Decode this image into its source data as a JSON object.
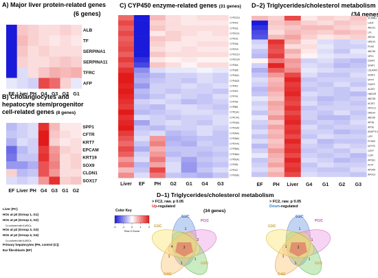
{
  "panels": {
    "A": {
      "title": "A)  Major liver protein-related genes",
      "count": "(6 genes)"
    },
    "B": {
      "title_line1": "B)  Cholangiocytes and",
      "title_line2": "hepatocyte stem/progenitor",
      "title_line3": "cell-related genes",
      "count": "(8 genes)"
    },
    "C": {
      "title": "C)  CYP450 enzyme-related genes",
      "count": "(31 genes)"
    },
    "D2": {
      "title": "D–2)  Triglycerides/cholesterol metabolism",
      "count": "(34 genes)"
    },
    "D1": {
      "title": "D–1)  Triglycerides/cholesterol metabolism"
    }
  },
  "legend": {
    "items": [
      {
        "text": "Liver (PC)",
        "sub": false
      },
      {
        "text": "HOs at p0 (Group 1, G1)",
        "sub": false
      },
      {
        "text": "HOs at p0 (Group 2, G2)",
        "sub": false
      },
      {
        "text": "Co-cultured with ILMSCs",
        "sub": true
      },
      {
        "text": "HOs at p2 (Group 3, G3)",
        "sub": false
      },
      {
        "text": "HOs at p2 (Group 4, G4)",
        "sub": false
      },
      {
        "text": "Co-cultured with ILMSCs",
        "sub": true
      },
      {
        "text": "Primary hepatocytes (PH, control (C))",
        "sub": false
      },
      {
        "text": "Ear fibroblasts  (EF)",
        "sub": false
      }
    ]
  },
  "color_key": {
    "title": "Color Key",
    "ticks": [
      "-2",
      "-1",
      "0",
      "1",
      "2"
    ],
    "xlabel": "Row Z-Score",
    "colors": {
      "low": "#1a1adb",
      "mid": "#ffffff",
      "high": "#e31a1a"
    }
  },
  "venn": {
    "left": {
      "line1": "> FC2, raw. p 0.05",
      "line2a": "Up",
      "line2b": "-regulated",
      "up_color": "#d7191c",
      "sets": {
        "g1": "G1/C",
        "pc": "PC/C",
        "g2": "G2/C",
        "g3": "G3/C",
        "g4": "G4/C"
      },
      "regions": [
        "1",
        "2",
        "3",
        "4",
        "1",
        "1",
        "1"
      ]
    },
    "right": {
      "line1": "> FC2, raw. p 0.05",
      "line2a": "Down",
      "line2b": "-regulated",
      "down_color": "#2b83ba",
      "sets": {
        "g1": "G1/C",
        "pc": "PC/C",
        "g2": "G2/C",
        "g3": "G3/C",
        "g4": "G4/C"
      },
      "regions": [
        "1",
        "1",
        "3",
        "1",
        "1",
        "1",
        "1"
      ]
    },
    "count": "(34 genes)"
  },
  "chart_data": [
    {
      "panel": "A",
      "type": "heatmap",
      "columns": [
        "EF",
        "Liver",
        "PH",
        "G4",
        "G3",
        "G2",
        "G1"
      ],
      "rows": [
        "ALB",
        "TF",
        "SERPINA1",
        "SERPINA11",
        "TFRC",
        "AFP"
      ],
      "values": [
        [
          -2.0,
          0.5,
          0.4,
          0.3,
          0.3,
          0.4,
          0.3
        ],
        [
          -2.0,
          0.6,
          0.4,
          0.3,
          0.2,
          0.3,
          0.2
        ],
        [
          -2.0,
          0.5,
          0.3,
          0.4,
          0.3,
          0.3,
          0.3
        ],
        [
          -2.0,
          0.4,
          0.3,
          0.3,
          0.4,
          0.5,
          0.4
        ],
        [
          -2.0,
          -0.3,
          0.3,
          0.5,
          0.7,
          0.6,
          0.7
        ],
        [
          -0.2,
          -0.3,
          -0.4,
          1.6,
          1.3,
          0.4,
          -0.2
        ]
      ]
    },
    {
      "panel": "B",
      "type": "heatmap",
      "columns": [
        "EF",
        "Liver",
        "PH",
        "G4",
        "G3",
        "G1",
        "G2"
      ],
      "rows": [
        "SPP1",
        "CFTR",
        "KRT7",
        "EPCAM",
        "KRT19",
        "SOX9",
        "CLDN1",
        "SOX17"
      ],
      "values": [
        [
          -0.6,
          -0.4,
          -0.3,
          1.8,
          0.6,
          0.2,
          0.2
        ],
        [
          -0.5,
          -0.4,
          -0.3,
          2.0,
          0.5,
          0.3,
          0.2
        ],
        [
          -0.7,
          -0.3,
          -0.4,
          2.0,
          0.4,
          0.2,
          0.3
        ],
        [
          -1.3,
          -0.6,
          -0.4,
          1.7,
          0.9,
          0.4,
          0.3
        ],
        [
          -1.2,
          -0.5,
          -0.5,
          1.8,
          1.0,
          0.3,
          0.4
        ],
        [
          -0.9,
          -0.9,
          -0.7,
          1.5,
          1.1,
          0.3,
          0.4
        ],
        [
          0.4,
          -0.6,
          -0.5,
          1.5,
          0.9,
          0.3,
          0.3
        ],
        [
          -0.3,
          -0.4,
          -0.3,
          0.9,
          1.8,
          0.4,
          0.5
        ]
      ]
    },
    {
      "panel": "C",
      "type": "heatmap",
      "columns": [
        "Liver",
        "EF",
        "PH",
        "G2",
        "G1",
        "G4",
        "G3"
      ],
      "rows": [
        "CYP2C18",
        "CYP4V2",
        "CYP2U1",
        "CYP2C21",
        "CYP1A1",
        "CYP2A6",
        "CYP2C9",
        "CYP2C19",
        "CYP2C29",
        "CYP3A4",
        "CYP3A5",
        "CYP4A11",
        "CYP4A22",
        "CYP4F2",
        "CYP4F3",
        "CYP7A1",
        "CYP7B1",
        "CYP8B1",
        "CYP11A1",
        "CYP17A1",
        "CYP19A1",
        "CYP21A2",
        "CYP24A1",
        "CYP26A1",
        "CYP27A1",
        "CYP39A1",
        "CYP46A1",
        "CYP51A1",
        "CYP2R1",
        "CYP2J2",
        "CYP20A1"
      ],
      "values": [
        [
          1.3,
          -2.0,
          0.6,
          0.3,
          0.2,
          0.3,
          0.3
        ],
        [
          1.6,
          -2.0,
          0.4,
          0.3,
          0.2,
          0.2,
          0.2
        ],
        [
          1.4,
          -2.0,
          0.5,
          0.3,
          0.3,
          0.3,
          0.3
        ],
        [
          1.6,
          -2.0,
          0.2,
          0.4,
          0.3,
          0.2,
          0.3
        ],
        [
          1.4,
          -2.0,
          0.5,
          0.4,
          0.2,
          0.2,
          0.2
        ],
        [
          1.5,
          -2.0,
          0.4,
          0.2,
          0.2,
          0.3,
          0.3
        ],
        [
          1.6,
          -2.0,
          0.3,
          0.2,
          0.3,
          0.2,
          0.2
        ],
        [
          1.4,
          -2.0,
          0.5,
          0.3,
          0.3,
          0.3,
          0.3
        ],
        [
          1.7,
          -1.8,
          0.2,
          0.1,
          0.2,
          0.1,
          0.1
        ],
        [
          1.5,
          -1.6,
          0.5,
          0.3,
          0.1,
          0.3,
          0.3
        ],
        [
          1.8,
          -1.0,
          -0.3,
          -0.2,
          -0.2,
          -0.1,
          -0.2
        ],
        [
          2.0,
          -0.8,
          -0.6,
          -0.4,
          -0.4,
          -0.3,
          -0.4
        ],
        [
          2.0,
          -0.7,
          -0.5,
          -0.4,
          -0.5,
          -0.3,
          -0.4
        ],
        [
          1.9,
          -0.9,
          -0.4,
          -0.4,
          -0.3,
          -0.4,
          -0.3
        ],
        [
          2.0,
          -0.6,
          -0.4,
          -0.5,
          -0.4,
          -0.4,
          -0.5
        ],
        [
          1.9,
          -0.7,
          -0.5,
          -0.3,
          -0.4,
          -0.5,
          -0.3
        ],
        [
          1.8,
          -0.4,
          -0.3,
          -0.4,
          -0.6,
          -0.5,
          -0.4
        ],
        [
          1.7,
          -0.5,
          -0.6,
          -0.3,
          -0.3,
          -0.4,
          -0.5
        ],
        [
          2.0,
          -0.6,
          -0.5,
          -0.4,
          -0.3,
          -0.3,
          -0.4
        ],
        [
          1.8,
          -0.3,
          -0.4,
          -0.5,
          -0.4,
          -0.4,
          -0.3
        ],
        [
          1.9,
          -0.8,
          -0.4,
          -0.3,
          -0.4,
          -0.5,
          -0.3
        ],
        [
          2.0,
          -0.5,
          -0.6,
          -0.4,
          -0.4,
          -0.3,
          -0.4
        ],
        [
          1.7,
          -0.4,
          -0.3,
          -0.6,
          -0.5,
          -0.3,
          -0.5
        ],
        [
          1.5,
          -0.3,
          0.9,
          -0.7,
          -0.6,
          -0.5,
          -0.5
        ],
        [
          1.3,
          -0.5,
          1.1,
          -0.6,
          -0.7,
          -0.4,
          -0.5
        ],
        [
          1.6,
          -0.7,
          0.7,
          -0.5,
          -0.5,
          -0.5,
          -0.4
        ],
        [
          1.4,
          -0.4,
          0.9,
          -0.6,
          -0.5,
          -0.6,
          -0.5
        ],
        [
          0.9,
          -0.3,
          1.2,
          -0.4,
          -0.8,
          -0.5,
          -0.4
        ],
        [
          1.2,
          -0.6,
          0.8,
          -0.3,
          -0.9,
          -0.6,
          -0.5
        ],
        [
          0.6,
          -0.5,
          1.6,
          -0.3,
          -0.9,
          -0.5,
          -0.3
        ],
        [
          1.0,
          -0.3,
          1.2,
          -0.5,
          -0.6,
          -0.7,
          -0.5
        ]
      ]
    },
    {
      "panel": "D2",
      "type": "heatmap",
      "columns": [
        "EF",
        "PH",
        "Liver",
        "G4",
        "G1",
        "G2",
        "G3"
      ],
      "rows": [
        "SCARB1",
        "LDLR",
        "ABCG1",
        "LPL",
        "ABCA1",
        "NR1H3",
        "PLIN2",
        "ABCG5",
        "NPC1",
        "DGAT1",
        "SOAT1",
        "LDLRAP1",
        "SOAT2",
        "MTTP",
        "DGAT2",
        "ACAT2",
        "HMGCR",
        "ABCG8",
        "ACAT1",
        "NPC1L1",
        "NR1H4",
        "ABCA5",
        "APOB",
        "APOE",
        "ANGPTL3",
        "LIPC",
        "PCSK9",
        "MTTP2",
        "CETP",
        "LCAT",
        "APOA1",
        "PLTP",
        "APOA5",
        "APOC3"
      ],
      "values": [
        [
          0.6,
          0.4,
          1.6,
          0.2,
          0.4,
          0.3,
          0.5
        ],
        [
          -2.0,
          0.5,
          0.7,
          0.4,
          0.3,
          0.5,
          0.4
        ],
        [
          -1.8,
          0.4,
          0.5,
          0.6,
          0.6,
          0.4,
          0.3
        ],
        [
          -1.6,
          0.3,
          0.6,
          0.5,
          0.4,
          0.6,
          0.5
        ],
        [
          -1.5,
          0.6,
          0.8,
          0.4,
          0.2,
          0.3,
          0.4
        ],
        [
          -0.4,
          1.8,
          0.6,
          0.2,
          -0.3,
          -0.4,
          -0.3
        ],
        [
          -0.3,
          1.6,
          0.3,
          0.3,
          -0.2,
          -0.4,
          -0.4
        ],
        [
          -0.5,
          1.5,
          0.7,
          0.2,
          -0.3,
          -0.5,
          -0.2
        ],
        [
          -0.6,
          1.7,
          0.5,
          0.1,
          -0.2,
          -0.3,
          -0.3
        ],
        [
          0.1,
          1.2,
          0.9,
          -0.4,
          -0.3,
          -0.5,
          -0.6
        ],
        [
          -0.4,
          1.9,
          0.8,
          -0.3,
          -0.4,
          -0.6,
          -0.5
        ],
        [
          -0.7,
          1.4,
          1.0,
          -0.2,
          -0.3,
          -0.4,
          -0.4
        ],
        [
          -0.5,
          0.9,
          1.6,
          -0.3,
          -0.5,
          -0.5,
          -0.3
        ],
        [
          -0.3,
          0.6,
          1.9,
          -0.5,
          -0.4,
          -0.4,
          -0.4
        ],
        [
          -0.4,
          0.7,
          1.7,
          -0.4,
          -0.5,
          -0.3,
          -0.5
        ],
        [
          -0.6,
          0.8,
          1.8,
          -0.5,
          -0.4,
          -0.5,
          -0.3
        ],
        [
          -0.5,
          0.6,
          1.9,
          -0.3,
          -0.4,
          -0.5,
          -0.6
        ],
        [
          -0.2,
          0.5,
          1.7,
          -0.4,
          -0.6,
          -0.5,
          -0.4
        ],
        [
          -0.4,
          0.8,
          1.6,
          -0.3,
          -0.5,
          -0.4,
          -0.5
        ],
        [
          -0.3,
          0.7,
          1.8,
          -0.5,
          -0.4,
          -0.4,
          -0.4
        ],
        [
          -0.5,
          0.6,
          1.6,
          -0.4,
          -0.5,
          -0.3,
          -0.5
        ],
        [
          -0.2,
          0.9,
          1.8,
          -0.4,
          -0.6,
          -0.6,
          -0.4
        ],
        [
          -0.4,
          0.5,
          1.9,
          -0.5,
          -0.4,
          -0.5,
          -0.3
        ],
        [
          -0.5,
          0.8,
          1.7,
          -0.3,
          -0.5,
          -0.4,
          -0.4
        ],
        [
          -0.3,
          0.6,
          1.8,
          -0.4,
          -0.4,
          -0.6,
          -0.5
        ],
        [
          -0.5,
          0.7,
          1.6,
          -0.5,
          -0.3,
          -0.4,
          -0.4
        ],
        [
          -0.3,
          0.5,
          1.9,
          -0.3,
          -0.6,
          -0.5,
          -0.5
        ],
        [
          -0.6,
          0.6,
          1.7,
          -0.4,
          -0.5,
          -0.3,
          -0.4
        ],
        [
          -0.4,
          0.9,
          1.8,
          -0.5,
          -0.4,
          -0.5,
          -0.3
        ],
        [
          -0.2,
          0.7,
          1.6,
          -0.4,
          -0.5,
          -0.4,
          -0.6
        ],
        [
          -0.5,
          0.6,
          1.9,
          -0.3,
          -0.4,
          -0.6,
          -0.5
        ],
        [
          -0.4,
          0.8,
          1.7,
          -0.5,
          -0.3,
          -0.4,
          -0.4
        ],
        [
          -0.3,
          0.5,
          1.8,
          -0.4,
          -0.5,
          -0.5,
          -0.3
        ],
        [
          -0.5,
          0.7,
          1.6,
          -0.3,
          -0.4,
          -0.4,
          -0.5
        ]
      ]
    }
  ]
}
